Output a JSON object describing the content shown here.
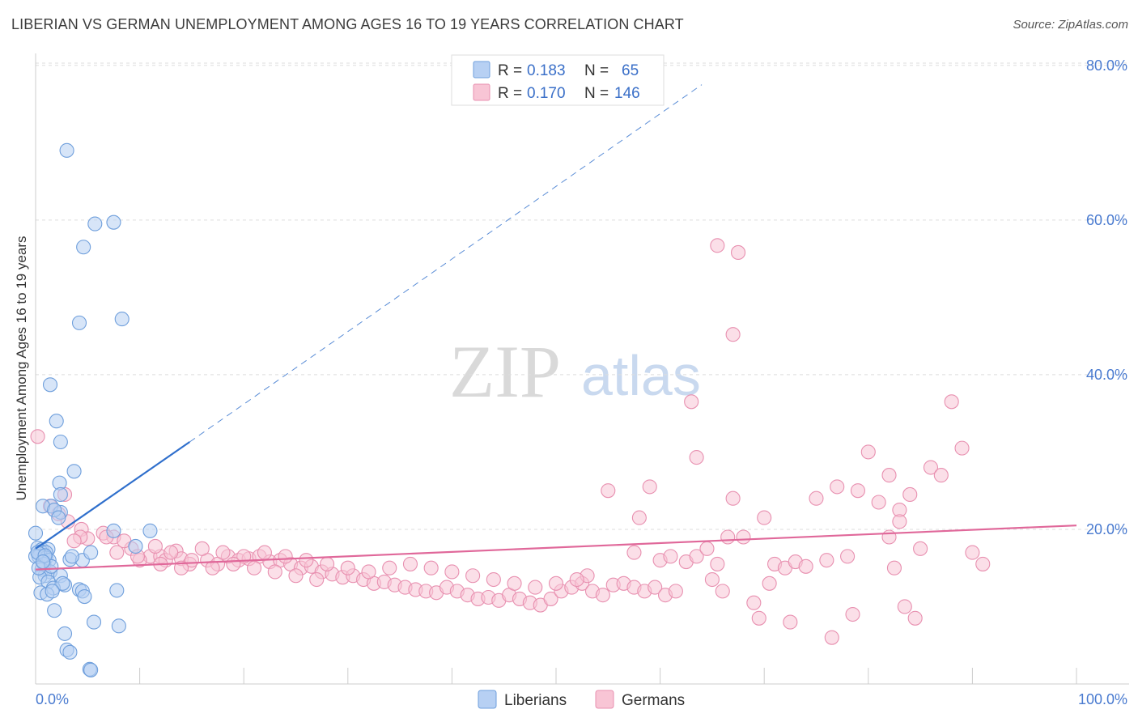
{
  "title": "LIBERIAN VS GERMAN UNEMPLOYMENT AMONG AGES 16 TO 19 YEARS CORRELATION CHART",
  "source": "Source: ZipAtlas.com",
  "watermark": {
    "zip": "ZIP",
    "atlas": "atlas"
  },
  "colors": {
    "liberian_fill": "#b7d0f3",
    "liberian_stroke": "#6f9fdc",
    "liberian_line": "#2f6fcc",
    "german_fill": "#f8c5d5",
    "german_stroke": "#e890b0",
    "german_line": "#e0689a",
    "tick_label": "#4a7bd0",
    "grid": "#dedede"
  },
  "legend": {
    "rows": [
      {
        "r_label": "R =",
        "r_value": "0.183",
        "n_label": "N =",
        "n_value": "65"
      },
      {
        "r_label": "R =",
        "r_value": "0.170",
        "n_label": "N =",
        "n_value": "146"
      }
    ],
    "bottom": [
      "Liberians",
      "Germans"
    ]
  },
  "chart_data": {
    "type": "scatter",
    "title": "LIBERIAN VS GERMAN UNEMPLOYMENT AMONG AGES 16 TO 19 YEARS CORRELATION CHART",
    "xlabel": "",
    "ylabel": "Unemployment Among Ages 16 to 19 years",
    "xlim": [
      0,
      100
    ],
    "ylim": [
      0,
      80
    ],
    "x_tick_labels": [
      "0.0%",
      "100.0%"
    ],
    "y_ticks": [
      20,
      40,
      60,
      80
    ],
    "y_tick_labels": [
      "20.0%",
      "40.0%",
      "60.0%",
      "80.0%"
    ],
    "grid": true,
    "legend_position": "top-center",
    "series": [
      {
        "name": "Liberians",
        "r": 0.183,
        "n": 65,
        "trend": {
          "x0": 0,
          "y0": 17.5,
          "x1": 14.8,
          "y1": 31.3,
          "dashed_to_x": 64,
          "dashed_to_y": 77.5
        },
        "points": [
          [
            3.0,
            69.0
          ],
          [
            5.7,
            59.5
          ],
          [
            7.5,
            59.7
          ],
          [
            4.6,
            56.5
          ],
          [
            8.3,
            47.2
          ],
          [
            4.2,
            46.7
          ],
          [
            1.4,
            38.7
          ],
          [
            2.0,
            34.0
          ],
          [
            2.4,
            31.3
          ],
          [
            3.7,
            27.5
          ],
          [
            2.3,
            26.0
          ],
          [
            2.4,
            24.5
          ],
          [
            1.5,
            23.0
          ],
          [
            0.7,
            23.0
          ],
          [
            2.4,
            22.2
          ],
          [
            1.8,
            22.5
          ],
          [
            2.2,
            21.5
          ],
          [
            0.0,
            19.5
          ],
          [
            7.5,
            19.8
          ],
          [
            11.0,
            19.8
          ],
          [
            0.2,
            17.6
          ],
          [
            0.6,
            17.4
          ],
          [
            1.2,
            17.4
          ],
          [
            0.5,
            17.1
          ],
          [
            1.0,
            17.0
          ],
          [
            0.4,
            16.8
          ],
          [
            0.3,
            16.5
          ],
          [
            1.0,
            16.3
          ],
          [
            1.3,
            16.0
          ],
          [
            0.0,
            16.5
          ],
          [
            3.3,
            16.1
          ],
          [
            4.5,
            16.0
          ],
          [
            5.3,
            17.0
          ],
          [
            9.6,
            17.8
          ],
          [
            0.8,
            15.5
          ],
          [
            0.6,
            14.8
          ],
          [
            1.4,
            14.5
          ],
          [
            0.9,
            14.0
          ],
          [
            0.4,
            13.8
          ],
          [
            2.4,
            14.0
          ],
          [
            1.2,
            13.2
          ],
          [
            2.8,
            12.8
          ],
          [
            4.2,
            12.2
          ],
          [
            4.5,
            12.0
          ],
          [
            1.7,
            12.4
          ],
          [
            7.8,
            12.1
          ],
          [
            0.5,
            11.8
          ],
          [
            1.1,
            11.6
          ],
          [
            4.7,
            11.3
          ],
          [
            1.8,
            9.5
          ],
          [
            5.6,
            8.0
          ],
          [
            8.0,
            7.5
          ],
          [
            2.8,
            6.5
          ],
          [
            3.0,
            4.4
          ],
          [
            3.3,
            4.1
          ],
          [
            5.2,
            1.9
          ],
          [
            5.3,
            1.8
          ],
          [
            0.3,
            15.0
          ],
          [
            0.2,
            17.0
          ],
          [
            1.5,
            15.2
          ],
          [
            2.6,
            13.0
          ],
          [
            0.9,
            16.6
          ],
          [
            1.6,
            12.0
          ],
          [
            3.5,
            16.5
          ],
          [
            0.7,
            15.8
          ]
        ]
      },
      {
        "name": "Germans",
        "r": 0.17,
        "n": 146,
        "trend": {
          "x0": 0,
          "y0": 14.8,
          "x1": 100,
          "y1": 20.5
        },
        "points": [
          [
            0.2,
            32.0
          ],
          [
            2.8,
            24.5
          ],
          [
            1.4,
            23.0
          ],
          [
            2.2,
            22.0
          ],
          [
            3.1,
            21.0
          ],
          [
            4.4,
            20.0
          ],
          [
            6.5,
            19.5
          ],
          [
            7.5,
            19.0
          ],
          [
            5.0,
            18.8
          ],
          [
            4.3,
            19.0
          ],
          [
            6.8,
            19.0
          ],
          [
            3.7,
            18.5
          ],
          [
            9.2,
            17.5
          ],
          [
            13.5,
            17.2
          ],
          [
            7.8,
            17.0
          ],
          [
            11.0,
            16.5
          ],
          [
            10.0,
            16.0
          ],
          [
            12.0,
            16.5
          ],
          [
            12.5,
            16.0
          ],
          [
            14.0,
            16.2
          ],
          [
            14.8,
            15.5
          ],
          [
            16.5,
            16.0
          ],
          [
            17.5,
            15.5
          ],
          [
            18.5,
            16.5
          ],
          [
            19.5,
            16.0
          ],
          [
            20.5,
            16.2
          ],
          [
            21.5,
            16.5
          ],
          [
            22.5,
            15.8
          ],
          [
            23.5,
            16.0
          ],
          [
            24.5,
            15.5
          ],
          [
            25.5,
            15.0
          ],
          [
            26.5,
            15.2
          ],
          [
            27.5,
            14.5
          ],
          [
            28.5,
            14.2
          ],
          [
            29.5,
            13.8
          ],
          [
            30.5,
            14.0
          ],
          [
            31.5,
            13.5
          ],
          [
            32.5,
            13.0
          ],
          [
            33.5,
            13.2
          ],
          [
            34.5,
            12.8
          ],
          [
            35.5,
            12.5
          ],
          [
            36.5,
            12.2
          ],
          [
            37.5,
            12.0
          ],
          [
            38.5,
            11.8
          ],
          [
            39.5,
            12.5
          ],
          [
            40.5,
            12.0
          ],
          [
            41.5,
            11.5
          ],
          [
            42.5,
            11.0
          ],
          [
            43.5,
            11.2
          ],
          [
            44.5,
            10.8
          ],
          [
            45.5,
            11.5
          ],
          [
            46.5,
            11.0
          ],
          [
            47.5,
            10.5
          ],
          [
            48.5,
            10.2
          ],
          [
            49.5,
            11.0
          ],
          [
            50.5,
            12.0
          ],
          [
            51.5,
            12.5
          ],
          [
            52.5,
            13.0
          ],
          [
            53.5,
            12.0
          ],
          [
            54.5,
            11.5
          ],
          [
            55.5,
            12.8
          ],
          [
            56.5,
            13.0
          ],
          [
            57.5,
            12.5
          ],
          [
            58.5,
            12.0
          ],
          [
            59.5,
            12.5
          ],
          [
            60.5,
            11.5
          ],
          [
            61.5,
            12.0
          ],
          [
            62.5,
            15.8
          ],
          [
            63.5,
            16.5
          ],
          [
            64.5,
            17.5
          ],
          [
            65.5,
            15.5
          ],
          [
            66.5,
            19.0
          ],
          [
            67.0,
            24.0
          ],
          [
            68.0,
            19.0
          ],
          [
            69.0,
            10.5
          ],
          [
            70.0,
            21.5
          ],
          [
            71.0,
            15.5
          ],
          [
            72.0,
            15.0
          ],
          [
            73.0,
            15.8
          ],
          [
            74.0,
            15.2
          ],
          [
            75.0,
            24.0
          ],
          [
            76.0,
            16.0
          ],
          [
            77.0,
            25.5
          ],
          [
            78.0,
            16.5
          ],
          [
            79.0,
            25.0
          ],
          [
            80.0,
            30.0
          ],
          [
            81.0,
            23.5
          ],
          [
            82.0,
            27.0
          ],
          [
            83.0,
            22.5
          ],
          [
            84.0,
            24.5
          ],
          [
            85.0,
            17.5
          ],
          [
            86.0,
            28.0
          ],
          [
            87.0,
            27.0
          ],
          [
            88.0,
            36.5
          ],
          [
            89.0,
            30.5
          ],
          [
            90.0,
            17.0
          ],
          [
            91.0,
            15.5
          ],
          [
            82.5,
            15.0
          ],
          [
            83.5,
            10.0
          ],
          [
            84.5,
            8.5
          ],
          [
            78.5,
            9.0
          ],
          [
            72.5,
            8.0
          ],
          [
            76.5,
            6.0
          ],
          [
            69.5,
            8.5
          ],
          [
            65.0,
            13.5
          ],
          [
            70.5,
            13.0
          ],
          [
            66.0,
            12.0
          ],
          [
            65.5,
            56.7
          ],
          [
            67.5,
            55.8
          ],
          [
            67.0,
            45.2
          ],
          [
            63.0,
            36.5
          ],
          [
            63.5,
            29.3
          ],
          [
            59.0,
            25.5
          ],
          [
            55.0,
            25.0
          ],
          [
            58.0,
            21.5
          ],
          [
            60.0,
            16.0
          ],
          [
            61.0,
            16.5
          ],
          [
            57.5,
            17.0
          ],
          [
            53.0,
            14.0
          ],
          [
            52.0,
            13.5
          ],
          [
            50.0,
            13.0
          ],
          [
            48.0,
            12.5
          ],
          [
            46.0,
            13.0
          ],
          [
            44.0,
            13.5
          ],
          [
            42.0,
            14.0
          ],
          [
            40.0,
            14.5
          ],
          [
            38.0,
            15.0
          ],
          [
            36.0,
            15.5
          ],
          [
            34.0,
            15.0
          ],
          [
            32.0,
            14.5
          ],
          [
            30.0,
            15.0
          ],
          [
            28.0,
            15.5
          ],
          [
            26.0,
            16.0
          ],
          [
            24.0,
            16.5
          ],
          [
            22.0,
            17.0
          ],
          [
            20.0,
            16.5
          ],
          [
            18.0,
            17.0
          ],
          [
            16.0,
            17.5
          ],
          [
            15.0,
            16.0
          ],
          [
            13.0,
            17.0
          ],
          [
            11.5,
            17.8
          ],
          [
            9.8,
            16.5
          ],
          [
            8.5,
            18.5
          ],
          [
            12.0,
            15.5
          ],
          [
            14.0,
            15.0
          ],
          [
            17.0,
            15.0
          ],
          [
            19.0,
            15.5
          ],
          [
            21.0,
            15.0
          ],
          [
            23.0,
            14.5
          ],
          [
            25.0,
            14.0
          ],
          [
            27.0,
            13.5
          ],
          [
            82.0,
            19.0
          ],
          [
            83.0,
            21.0
          ]
        ]
      }
    ]
  }
}
